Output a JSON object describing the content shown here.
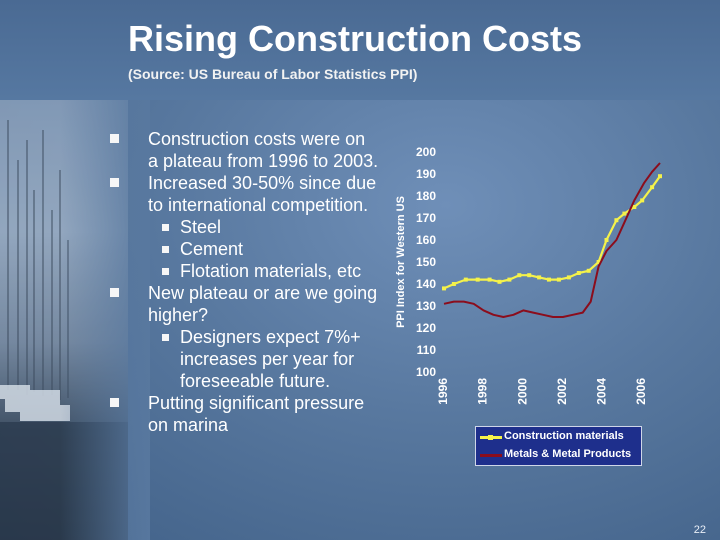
{
  "slide": {
    "title": "Rising Construction Costs",
    "subtitle": "(Source:  US Bureau of Labor Statistics PPI)",
    "page_number": "22"
  },
  "bullets": [
    {
      "text": "Construction costs were on a plateau from 1996 to 2003."
    },
    {
      "text": "Increased 30-50% since due to international competition.",
      "sub": [
        "Steel",
        "Cement",
        "Flotation materials, etc"
      ]
    },
    {
      "text": "New plateau or are we going higher?",
      "sub": [
        "Designers expect 7%+ increases per year for foreseeable future."
      ]
    },
    {
      "text": "Putting significant pressure on marina"
    }
  ],
  "colors": {
    "construction": "#f5f24a",
    "metals": "#8b0d1c",
    "legend_bg": "#1e2f8c"
  },
  "chart_data": {
    "type": "line",
    "title": "",
    "xlabel": "",
    "ylabel": "PPI Index for Western US",
    "ylim": [
      100,
      200
    ],
    "yticks": [
      100,
      110,
      120,
      130,
      140,
      150,
      160,
      170,
      180,
      190,
      200
    ],
    "xlim": [
      1996,
      2007.2
    ],
    "xticks": [
      1996,
      1998,
      2000,
      2002,
      2004,
      2006
    ],
    "grid": false,
    "series": [
      {
        "name": "Construction materials",
        "color": "#f5f24a",
        "markers": true,
        "x": [
          1996.1,
          1996.6,
          1997.2,
          1997.8,
          1998.4,
          1998.9,
          1999.4,
          1999.9,
          2000.4,
          2000.9,
          2001.4,
          2001.9,
          2002.4,
          2002.9,
          2003.4,
          2003.9,
          2004.3,
          2004.8,
          2005.2,
          2005.7,
          2006.1,
          2006.6,
          2007.0
        ],
        "y": [
          138,
          140,
          142,
          142,
          142,
          141,
          142,
          144,
          144,
          143,
          142,
          142,
          143,
          145,
          146,
          150,
          160,
          169,
          172,
          175,
          178,
          184,
          189
        ]
      },
      {
        "name": "Metals & Metal Products",
        "color": "#8b0d1c",
        "markers": false,
        "x": [
          1996.1,
          1996.6,
          1997.1,
          1997.6,
          1998.1,
          1998.6,
          1999.1,
          1999.6,
          2000.1,
          2000.6,
          2001.1,
          2001.6,
          2002.1,
          2002.6,
          2003.1,
          2003.5,
          2003.9,
          2004.3,
          2004.8,
          2005.2,
          2005.7,
          2006.2,
          2006.6,
          2007.0
        ],
        "y": [
          131,
          132,
          132,
          131,
          128,
          126,
          125,
          126,
          128,
          127,
          126,
          125,
          125,
          126,
          127,
          132,
          148,
          155,
          160,
          168,
          178,
          186,
          191,
          195
        ]
      }
    ],
    "legend": {
      "placement": "bottom",
      "entries": [
        "Construction materials",
        "Metals & Metal Products"
      ]
    }
  }
}
